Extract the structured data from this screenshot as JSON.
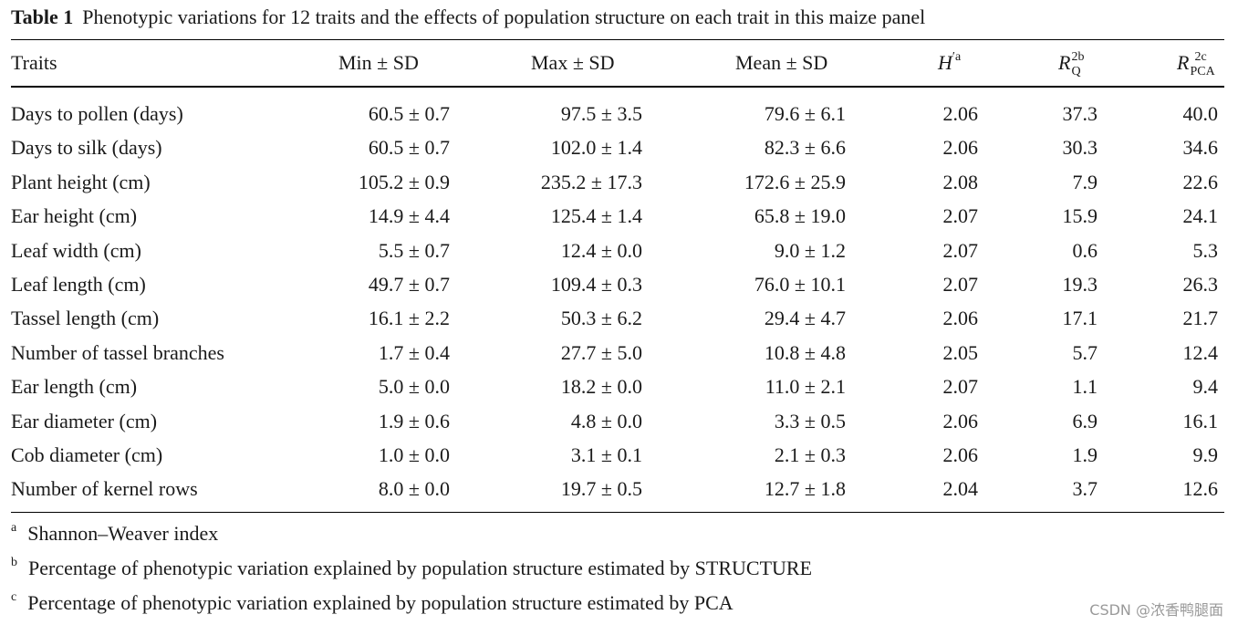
{
  "caption": {
    "label": "Table 1",
    "text": "Phenotypic variations for 12 traits and the effects of population structure on each trait in this maize panel"
  },
  "headers": {
    "traits": "Traits",
    "min": "Min ± SD",
    "max": "Max ± SD",
    "mean": "Mean ± SD",
    "h_main": "H",
    "h_prime": "′",
    "h_sup": "a",
    "rq_main": "R",
    "rq_sup": "2b",
    "rq_sub": "Q",
    "rpca_main": "R",
    "rpca_sup": "2c",
    "rpca_sub": "PCA"
  },
  "rows": [
    {
      "trait": "Days to pollen (days)",
      "min": "60.5 ± 0.7",
      "max": "97.5 ± 3.5",
      "mean": "79.6 ± 6.1",
      "h": "2.06",
      "rq": "37.3",
      "rpca": "40.0"
    },
    {
      "trait": "Days to silk (days)",
      "min": "60.5 ± 0.7",
      "max": "102.0 ± 1.4",
      "mean": "82.3 ± 6.6",
      "h": "2.06",
      "rq": "30.3",
      "rpca": "34.6"
    },
    {
      "trait": "Plant height (cm)",
      "min": "105.2 ± 0.9",
      "max": "235.2 ± 17.3",
      "mean": "172.6 ± 25.9",
      "h": "2.08",
      "rq": "7.9",
      "rpca": "22.6"
    },
    {
      "trait": "Ear height (cm)",
      "min": "14.9 ± 4.4",
      "max": "125.4 ± 1.4",
      "mean": "65.8 ± 19.0",
      "h": "2.07",
      "rq": "15.9",
      "rpca": "24.1"
    },
    {
      "trait": "Leaf width (cm)",
      "min": "5.5 ± 0.7",
      "max": "12.4 ± 0.0",
      "mean": "9.0 ± 1.2",
      "h": "2.07",
      "rq": "0.6",
      "rpca": "5.3"
    },
    {
      "trait": "Leaf length (cm)",
      "min": "49.7 ± 0.7",
      "max": "109.4 ± 0.3",
      "mean": "76.0 ± 10.1",
      "h": "2.07",
      "rq": "19.3",
      "rpca": "26.3"
    },
    {
      "trait": "Tassel length (cm)",
      "min": "16.1 ± 2.2",
      "max": "50.3 ± 6.2",
      "mean": "29.4 ± 4.7",
      "h": "2.06",
      "rq": "17.1",
      "rpca": "21.7"
    },
    {
      "trait": "Number of tassel branches",
      "min": "1.7 ± 0.4",
      "max": "27.7 ± 5.0",
      "mean": "10.8 ± 4.8",
      "h": "2.05",
      "rq": "5.7",
      "rpca": "12.4"
    },
    {
      "trait": "Ear length (cm)",
      "min": "5.0 ± 0.0",
      "max": "18.2 ± 0.0",
      "mean": "11.0 ± 2.1",
      "h": "2.07",
      "rq": "1.1",
      "rpca": "9.4"
    },
    {
      "trait": "Ear diameter (cm)",
      "min": "1.9 ± 0.6",
      "max": "4.8 ± 0.0",
      "mean": "3.3 ± 0.5",
      "h": "2.06",
      "rq": "6.9",
      "rpca": "16.1"
    },
    {
      "trait": "Cob diameter (cm)",
      "min": "1.0 ± 0.0",
      "max": "3.1 ± 0.1",
      "mean": "2.1 ± 0.3",
      "h": "2.06",
      "rq": "1.9",
      "rpca": "9.9"
    },
    {
      "trait": "Number of kernel rows",
      "min": "8.0 ± 0.0",
      "max": "19.7 ± 0.5",
      "mean": "12.7 ± 1.8",
      "h": "2.04",
      "rq": "3.7",
      "rpca": "12.6"
    }
  ],
  "footnotes": [
    {
      "mark": "a",
      "text": "Shannon–Weaver index"
    },
    {
      "mark": "b",
      "text": "Percentage of phenotypic variation explained by population structure estimated by STRUCTURE"
    },
    {
      "mark": "c",
      "text": "Percentage of phenotypic variation explained by population structure estimated by PCA"
    }
  ],
  "watermark": "CSDN @浓香鸭腿面"
}
